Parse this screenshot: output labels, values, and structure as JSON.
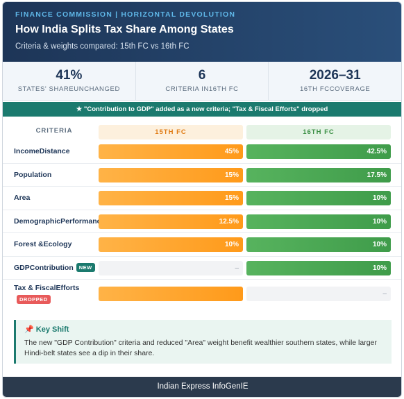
{
  "header": {
    "eyebrow": "FINANCE COMMISSION | HORIZONTAL DEVOLUTION",
    "title": "How India Splits Tax Share Among States",
    "subtitle": "Criteria & weights compared: 15th FC vs 16th FC"
  },
  "stats": [
    {
      "value": "41%",
      "label": "STATES' SHAREUNCHANGED"
    },
    {
      "value": "6",
      "label": "CRITERIA IN16TH FC"
    },
    {
      "value": "2026–31",
      "label": "16TH FCCOVERAGE"
    }
  ],
  "banner": "★ \"Contribution to GDP\" added as a new criteria; \"Tax & Fiscal Efforts\" dropped",
  "table": {
    "headers": [
      "CRITERIA",
      "15TH FC",
      "16TH FC"
    ],
    "rows": [
      {
        "criteria": "IncomeDistance",
        "fc15": "45%",
        "fc16": "42.5%"
      },
      {
        "criteria": "Population",
        "fc15": "15%",
        "fc16": "17.5%"
      },
      {
        "criteria": "Area",
        "fc15": "15%",
        "fc16": "10%"
      },
      {
        "criteria": "DemographicPerformance",
        "fc15": "12.5%",
        "fc16": "10%"
      },
      {
        "criteria": "Forest &Ecology",
        "fc15": "10%",
        "fc16": "10%"
      },
      {
        "criteria": "GDPContribution",
        "badge": "NEW",
        "fc15": "–",
        "fc16": "10%"
      },
      {
        "criteria": "Tax & FiscalEfforts",
        "badge": "DROPPED",
        "fc16": "–"
      }
    ]
  },
  "note": {
    "icon": "📌",
    "title": "Key Shift",
    "text": "The new \"GDP Contribution\" criteria and reduced \"Area\" weight benefit wealthier southern states, while larger Hindi-belt states see a dip in their share."
  },
  "footer": "Indian Express InfoGenIE"
}
